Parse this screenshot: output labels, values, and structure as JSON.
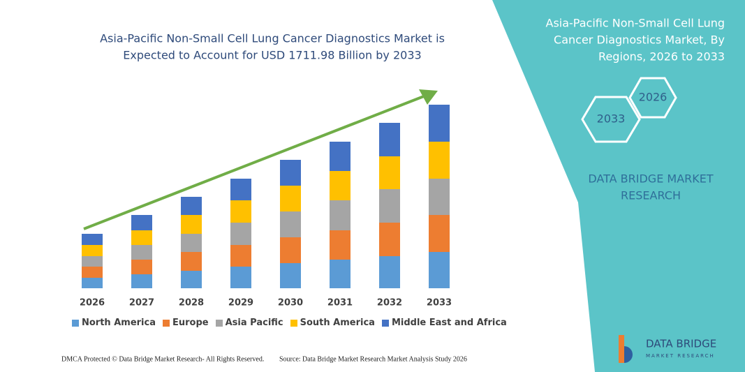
{
  "chart_data": {
    "type": "stacked_bar",
    "title": [
      "Asia-Pacific Non-Small Cell Lung Cancer Diagnostics Market is",
      "Expected to Account for USD 1711.98 Billion by 2033"
    ],
    "categories": [
      "2026",
      "2027",
      "2028",
      "2029",
      "2030",
      "2031",
      "2032",
      "2033"
    ],
    "series": [
      {
        "name": "North America",
        "color": "#5b9bd5",
        "values": [
          15,
          20,
          25,
          31,
          36,
          41,
          46,
          52
        ]
      },
      {
        "name": "Europe",
        "color": "#ed7d31",
        "values": [
          16,
          21,
          27,
          31,
          37,
          42,
          48,
          53
        ]
      },
      {
        "name": "Asia Pacific",
        "color": "#a5a5a5",
        "values": [
          15,
          21,
          26,
          32,
          37,
          43,
          48,
          52
        ]
      },
      {
        "name": "South America",
        "color": "#ffc000",
        "values": [
          16,
          21,
          27,
          32,
          37,
          42,
          47,
          53
        ]
      },
      {
        "name": "Middle East and Africa",
        "color": "#4472c4",
        "values": [
          16,
          22,
          26,
          31,
          37,
          42,
          48,
          53
        ]
      }
    ]
  },
  "panel": {
    "title": [
      "Asia-Pacific Non-Small Cell Lung",
      "Cancer Diagnostics Market, By",
      "Regions, 2026 to 2033"
    ],
    "hex_start": "2026",
    "hex_end": "2033",
    "brand": [
      "DATA BRIDGE MARKET",
      "RESEARCH"
    ]
  },
  "footer": {
    "left": "DMCA Protected © Data Bridge Market Research-  All Rights Reserved.",
    "right": "Source: Data Bridge Market Research  Market Analysis Study 2026"
  },
  "logo": {
    "name": "DATA BRIDGE",
    "tagline": "MARKET RESEARCH"
  }
}
